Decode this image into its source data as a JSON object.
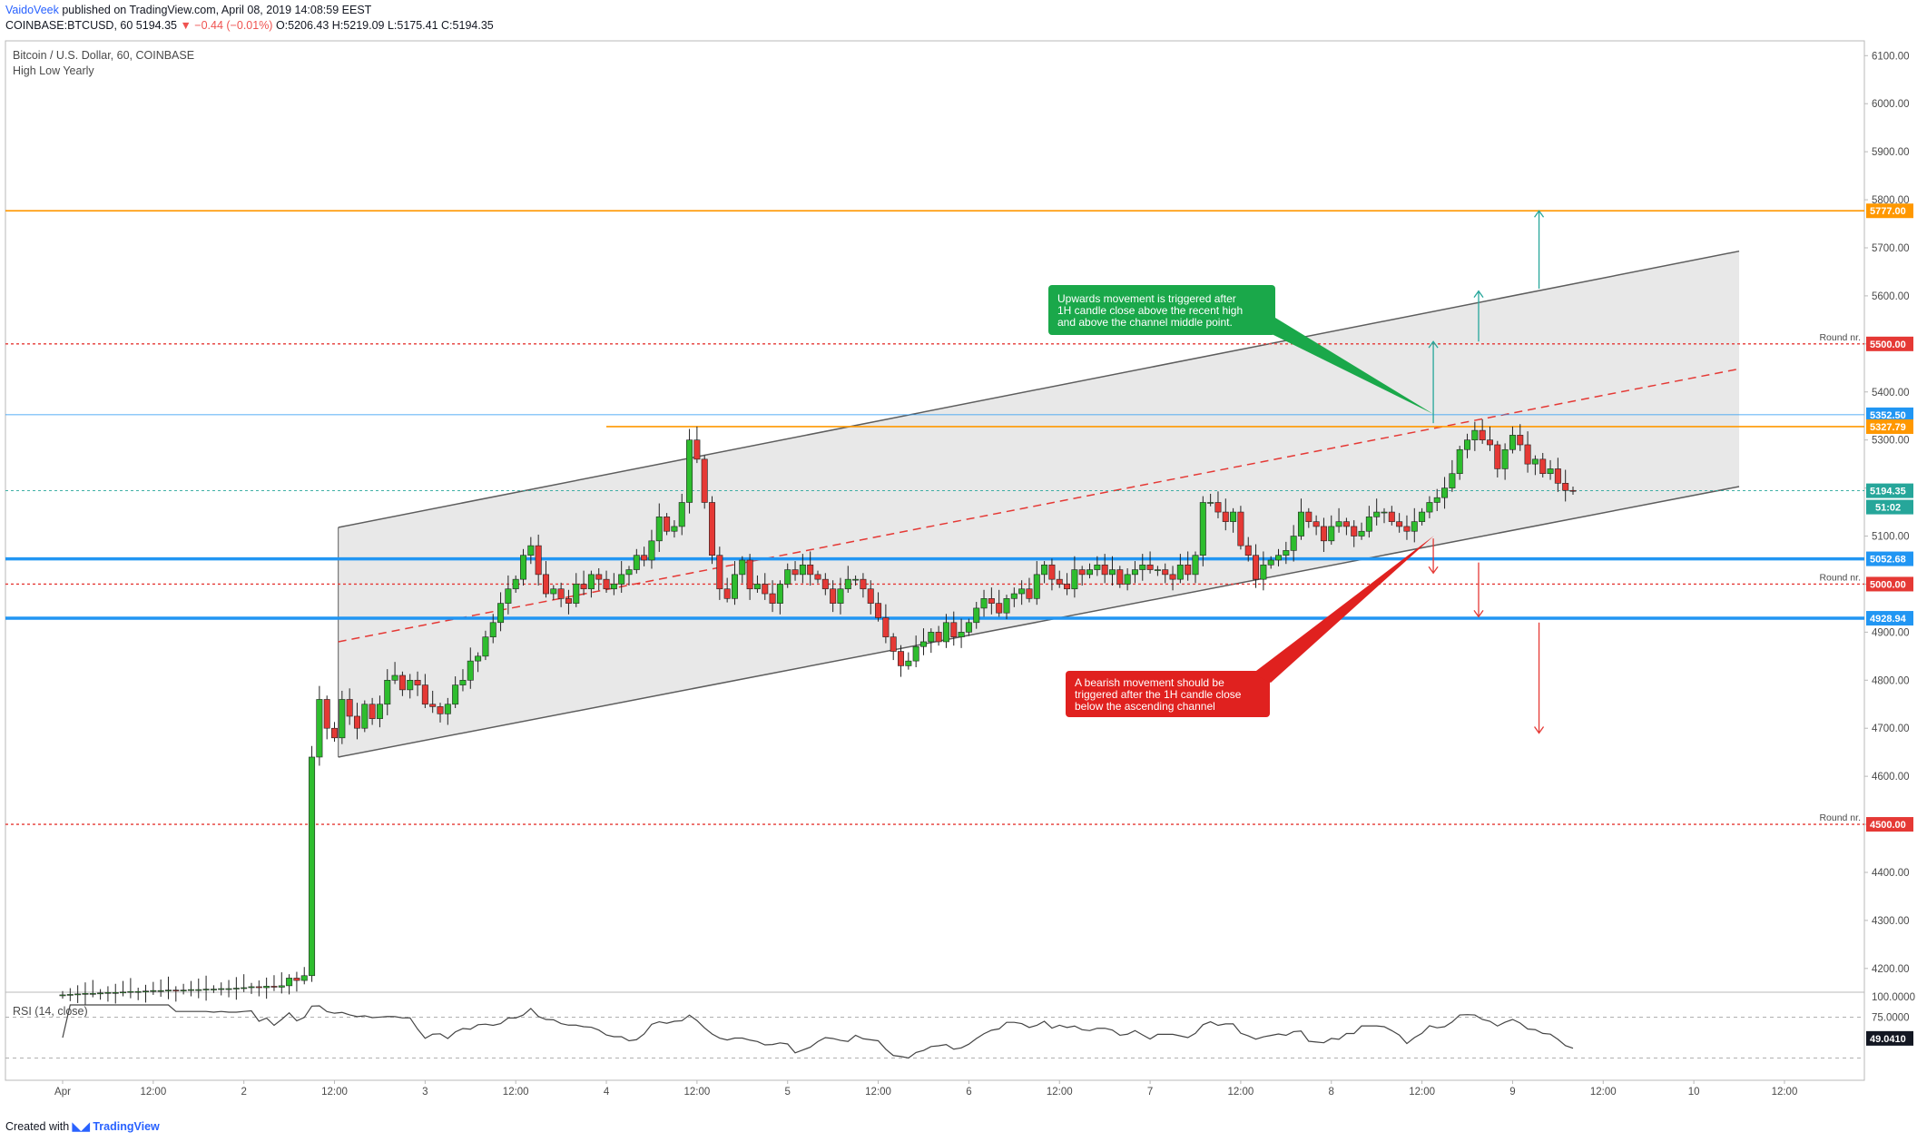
{
  "header": {
    "author": "VaidoVeek",
    "published": " published on TradingView.com, April 08, 2019 14:08:59 EEST",
    "symbol_line_1": "COINBASE:BTCUSD, 60  5194.35 ",
    "change": "▼ −0.44 (−0.01%)",
    "ohlc": " O:5206.43 H:5219.09 L:5175.41 C:5194.35"
  },
  "pane": {
    "title": "Bitcoin / U.S. Dollar, 60, COINBASE",
    "indicator": "High Low Yearly",
    "rsi_label": "RSI (14, close)"
  },
  "footer": {
    "created": "Created with ",
    "brand": "TradingView"
  },
  "colors": {
    "up": "#26a69a",
    "up_fill": "#2ebd2e",
    "down": "#e53935",
    "orange": "#ff9800",
    "blue": "#2196f3",
    "red_dash": "#e53935",
    "channel_fill": "#e6e6e6",
    "channel_line": "#5d5d5d",
    "green_callout": "#1aa84a",
    "red_callout": "#e0211f",
    "rsi": "#444444"
  },
  "chart_data": {
    "type": "candlestick",
    "title": "Bitcoin / U.S. Dollar, 60, COINBASE",
    "y_axis": {
      "min": 4160,
      "max": 6110,
      "ticks": [
        "6100.00",
        "6000.00",
        "5900.00",
        "5800.00",
        "5700.00",
        "5600.00",
        "5500.00",
        "5400.00",
        "5300.00",
        "5200.00",
        "5100.00",
        "5000.00",
        "4900.00",
        "4800.00",
        "4700.00",
        "4600.00",
        "4500.00",
        "4400.00",
        "4300.00",
        "4200.00"
      ]
    },
    "x_axis": {
      "labels": [
        "Apr",
        "12:00",
        "2",
        "12:00",
        "3",
        "12:00",
        "4",
        "12:00",
        "5",
        "12:00",
        "6",
        "12:00",
        "7",
        "12:00",
        "8",
        "12:00",
        "9",
        "12:00",
        "10",
        "12:00"
      ],
      "label_hours": [
        0,
        12,
        24,
        36,
        48,
        60,
        72,
        84,
        96,
        108,
        120,
        132,
        144,
        156,
        168,
        180,
        192,
        204,
        216,
        228
      ]
    },
    "price_tags": [
      {
        "value": 5777.0,
        "label": "5777.00",
        "color": "orange"
      },
      {
        "value": 5500.0,
        "label": "5500.00",
        "color": "red",
        "note": "Round nr."
      },
      {
        "value": 5352.5,
        "label": "5352.50",
        "color": "blue"
      },
      {
        "value": 5327.79,
        "label": "5327.79",
        "color": "orange"
      },
      {
        "value": 5194.35,
        "label": "5194.35",
        "color": "green"
      },
      {
        "value": 5052.68,
        "label": "5052.68",
        "color": "blue"
      },
      {
        "value": 5000.0,
        "label": "5000.00",
        "color": "red",
        "note": "Round nr."
      },
      {
        "value": 4928.94,
        "label": "4928.94",
        "color": "blue"
      },
      {
        "value": 4500.0,
        "label": "4500.00",
        "color": "red",
        "note": "Round nr."
      }
    ],
    "countdown": "51:02",
    "horizontal_lines": [
      {
        "value": 5777.0,
        "style": "solid",
        "color": "orange"
      },
      {
        "value": 5500.0,
        "style": "dotted",
        "color": "red"
      },
      {
        "value": 5352.5,
        "style": "solid-thin",
        "color": "blue"
      },
      {
        "value": 5327.79,
        "style": "solid",
        "color": "orange"
      },
      {
        "value": 5194.35,
        "style": "dotted",
        "color": "green"
      },
      {
        "value": 5052.68,
        "style": "solid-thick",
        "color": "blue"
      },
      {
        "value": 5000.0,
        "style": "dotted",
        "color": "red"
      },
      {
        "value": 4928.94,
        "style": "solid-thick",
        "color": "blue"
      },
      {
        "value": 4500.0,
        "style": "dotted",
        "color": "red"
      }
    ],
    "channel": {
      "start_hour": 36.5,
      "end_hour": 222,
      "upper": [
        5118,
        5693
      ],
      "lower": [
        4640,
        5203
      ],
      "middle": [
        4880,
        5448
      ]
    },
    "candles": {
      "start_hour": 0,
      "close": [
        4145,
        4146,
        4147,
        4148,
        4148,
        4149,
        4150,
        4150,
        4151,
        4152,
        4152,
        4153,
        4154,
        4154,
        4155,
        4154,
        4155,
        4156,
        4156,
        4157,
        4157,
        4158,
        4158,
        4159,
        4160,
        4162,
        4160,
        4163,
        4161,
        4164,
        4180,
        4175,
        4185,
        4640,
        4760,
        4700,
        4680,
        4760,
        4725,
        4700,
        4750,
        4720,
        4750,
        4800,
        4810,
        4780,
        4800,
        4790,
        4750,
        4745,
        4730,
        4750,
        4790,
        4800,
        4840,
        4850,
        4890,
        4920,
        4960,
        4990,
        5010,
        5060,
        5080,
        5020,
        4980,
        4990,
        4970,
        4960,
        5000,
        4990,
        5020,
        5010,
        4990,
        5000,
        5020,
        5030,
        5060,
        5050,
        5090,
        5140,
        5110,
        5120,
        5170,
        5300,
        5260,
        5170,
        5060,
        4990,
        4970,
        5020,
        5050,
        4990,
        5000,
        4980,
        4960,
        5000,
        5030,
        5020,
        5040,
        5020,
        5010,
        4990,
        4960,
        4990,
        5010,
        5010,
        4990,
        4960,
        4930,
        4890,
        4860,
        4830,
        4840,
        4870,
        4880,
        4900,
        4880,
        4920,
        4890,
        4900,
        4920,
        4950,
        4970,
        4960,
        4940,
        4970,
        4980,
        4990,
        4970,
        5020,
        5040,
        5010,
        5000,
        4990,
        5030,
        5020,
        5030,
        5040,
        5020,
        5030,
        5000,
        5020,
        5030,
        5040,
        5030,
        5030,
        5020,
        5010,
        5040,
        5020,
        5060,
        5170,
        5170,
        5150,
        5130,
        5150,
        5080,
        5060,
        5010,
        5040,
        5050,
        5060,
        5070,
        5100,
        5150,
        5130,
        5120,
        5090,
        5120,
        5130,
        5120,
        5100,
        5110,
        5140,
        5150,
        5150,
        5130,
        5120,
        5110,
        5130,
        5150,
        5170,
        5180,
        5200,
        5230,
        5280,
        5300,
        5320,
        5300,
        5290,
        5240,
        5280,
        5310,
        5290,
        5250,
        5260,
        5230,
        5240,
        5210,
        5195,
        5194
      ],
      "open_note": "each candle opens at the previous close"
    },
    "rsi": {
      "label": "RSI (14, close)",
      "value_label": "49.0410",
      "levels": [
        "100.0000",
        "75.0000"
      ],
      "y_min": 0,
      "y_max": 100
    },
    "annotations": {
      "green": {
        "lines": [
          "Upwards movement is triggered after",
          "1H candle close above the recent high",
          "and above the channel middle point."
        ]
      },
      "red": {
        "lines": [
          "A bearish movement should be",
          "triggered after the 1H candle close",
          "below the ascending channel"
        ]
      },
      "round_note": "Round nr."
    }
  }
}
